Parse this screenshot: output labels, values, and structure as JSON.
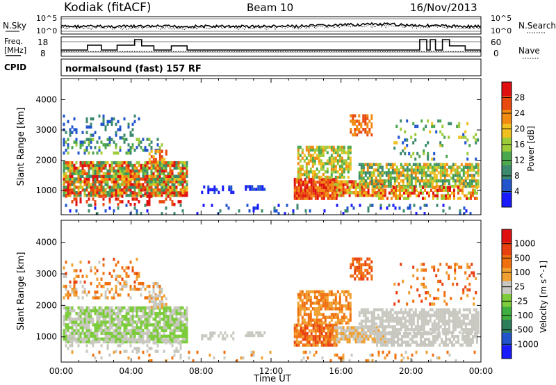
{
  "header": {
    "station": "Kodiak (fitACF)",
    "beam": "Beam 10",
    "date": "16/Nov/2013"
  },
  "noise_panel": {
    "left_label": "N.Sky",
    "right_label": "N.Search",
    "left_ticks": [
      "10^5",
      "10^0"
    ],
    "right_ticks": [
      "10^5",
      "10^0"
    ]
  },
  "freq_panel": {
    "left_label_1": "Freq.",
    "left_label_2": "[MHz]",
    "right_label": "Nave",
    "left_ticks": [
      "18",
      "8"
    ],
    "right_ticks": [
      "60",
      "0"
    ]
  },
  "cpid": {
    "label": "CPID",
    "value": "normalsound (fast) 157 RF"
  },
  "colors": {
    "power_scale": [
      "#1a1aff",
      "#2255cc",
      "#3b8a6e",
      "#4ca84c",
      "#9ccc3a",
      "#f0c020",
      "#f08a10",
      "#e84a10",
      "#e01010"
    ],
    "velocity_scale": [
      "#1a1aff",
      "#2255cc",
      "#2e7d5a",
      "#3fae3f",
      "#7ccc3c",
      "#c8c8c0",
      "#f0a030",
      "#f07010",
      "#e84010",
      "#e01010"
    ],
    "ground_scatter": "#c8c8c0"
  },
  "chart_data": [
    {
      "type": "heatmap",
      "title": "Power",
      "xlabel": "Time UT",
      "ylabel": "Slant Range [km]",
      "x_ticks": [
        "00:00",
        "04:00",
        "08:00",
        "12:00",
        "16:00",
        "20:00",
        "00:00"
      ],
      "y_ticks": [
        "1000",
        "2000",
        "3000",
        "4000"
      ],
      "ylim": [
        200,
        4700
      ],
      "xlim_hours": [
        0,
        24
      ],
      "colorbar": {
        "label": "Power [dB]",
        "ticks": [
          "4",
          "8",
          "12",
          "16",
          "20",
          "24",
          "28"
        ],
        "range": [
          0,
          30
        ]
      }
    },
    {
      "type": "heatmap",
      "title": "Velocity",
      "xlabel": "Time UT",
      "ylabel": "Slant Range [km]",
      "x_ticks": [
        "00:00",
        "04:00",
        "08:00",
        "12:00",
        "16:00",
        "20:00",
        "00:00"
      ],
      "y_ticks": [
        "1000",
        "2000",
        "3000",
        "4000"
      ],
      "ylim": [
        200,
        4700
      ],
      "xlim_hours": [
        0,
        24
      ],
      "colorbar": {
        "label": "Velocity [m s^-1]",
        "ticks": [
          "1000",
          "500",
          "100",
          "25",
          "-25",
          "-100",
          "-500",
          "-1000"
        ]
      }
    }
  ]
}
